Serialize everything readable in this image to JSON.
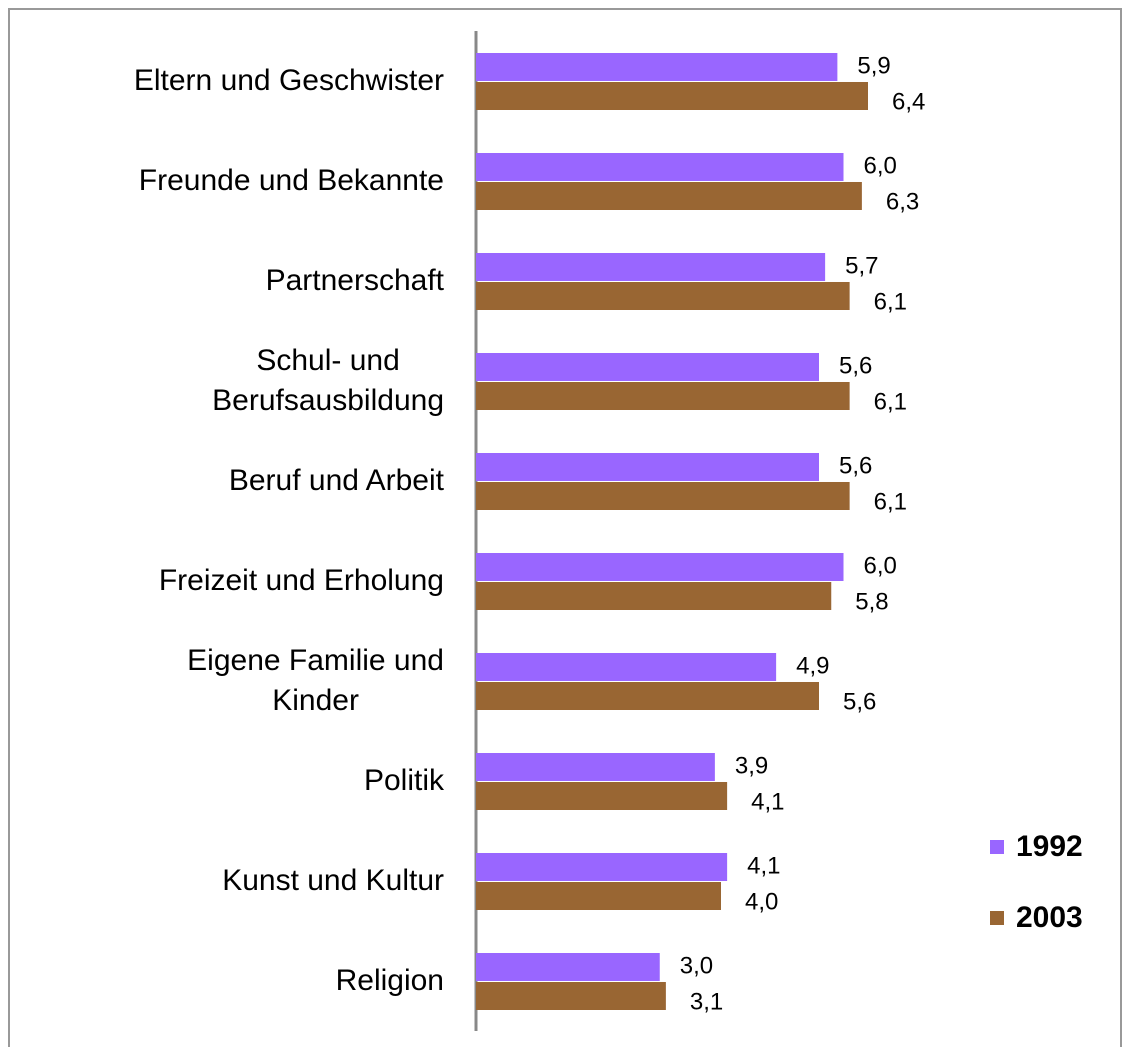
{
  "chart_data": {
    "type": "hbar",
    "categories": [
      "Eltern und Geschwister",
      "Freunde und Bekannte",
      "Partnerschaft",
      "Schul- und\nBerufsausbildung",
      "Beruf und Arbeit",
      "Freizeit und Erholung",
      "Eigene Familie und\nKinder",
      "Politik",
      "Kunst und Kultur",
      "Religion"
    ],
    "series": [
      {
        "name": "1992",
        "color": "#9966ff",
        "values": [
          5.9,
          6.0,
          5.7,
          5.6,
          5.6,
          6.0,
          4.9,
          3.9,
          4.1,
          3.0
        ],
        "value_labels": [
          "5,9",
          "6,0",
          "5,7",
          "5,6",
          "5,6",
          "6,0",
          "4,9",
          "3,9",
          "4,1",
          "3,0"
        ]
      },
      {
        "name": "2003",
        "color": "#996633",
        "values": [
          6.4,
          6.3,
          6.1,
          6.1,
          6.1,
          5.8,
          5.6,
          4.1,
          4.0,
          3.1
        ],
        "value_labels": [
          "6,4",
          "6,3",
          "6,1",
          "6,1",
          "6,1",
          "5,8",
          "5,6",
          "4,1",
          "4,0",
          "3,1"
        ]
      }
    ],
    "xlim": [
      0,
      8
    ],
    "legend": "right"
  }
}
